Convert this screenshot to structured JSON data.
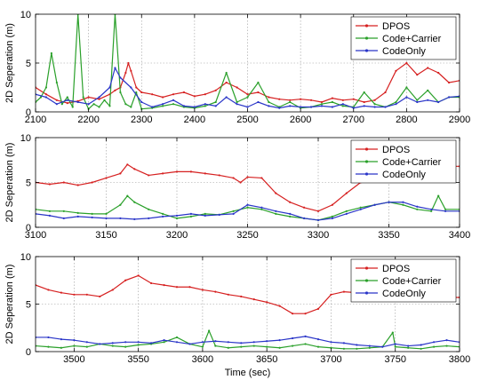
{
  "chart_data": [
    {
      "type": "line",
      "ylabel": "2D Seperation (m)",
      "xlabel": "",
      "xlim": [
        2100,
        2900
      ],
      "ylim": [
        0,
        10
      ],
      "xticks": [
        2100,
        2200,
        2300,
        2400,
        2500,
        2600,
        2700,
        2800,
        2900
      ],
      "yticks": [
        0,
        5,
        10
      ],
      "grid": true,
      "legend_position": "top-right",
      "series": [
        {
          "name": "DPOS",
          "color": "#d62020",
          "x": [
            2100,
            2120,
            2140,
            2160,
            2180,
            2200,
            2220,
            2240,
            2250,
            2260,
            2270,
            2275,
            2280,
            2290,
            2300,
            2320,
            2340,
            2360,
            2380,
            2400,
            2420,
            2440,
            2460,
            2480,
            2500,
            2520,
            2540,
            2560,
            2580,
            2600,
            2620,
            2640,
            2660,
            2680,
            2700,
            2720,
            2740,
            2760,
            2780,
            2800,
            2820,
            2840,
            2860,
            2880,
            2900
          ],
          "y": [
            2.5,
            1.8,
            1.2,
            0.9,
            1.1,
            1.5,
            1.3,
            1.8,
            2.2,
            2.5,
            4.0,
            5.0,
            4.2,
            2.5,
            2.0,
            1.8,
            1.5,
            1.8,
            2.0,
            1.6,
            1.8,
            2.2,
            3.0,
            2.5,
            1.8,
            2.0,
            1.5,
            1.3,
            1.2,
            1.3,
            1.2,
            1.0,
            1.4,
            1.2,
            1.3,
            1.0,
            1.2,
            2.0,
            4.2,
            5.0,
            3.8,
            4.5,
            4.0,
            3.0,
            3.2
          ]
        },
        {
          "name": "Code+Carrier",
          "color": "#2aa02a",
          "x": [
            2100,
            2110,
            2120,
            2130,
            2140,
            2150,
            2160,
            2170,
            2180,
            2190,
            2200,
            2210,
            2220,
            2230,
            2240,
            2250,
            2260,
            2270,
            2280,
            2290,
            2300,
            2320,
            2340,
            2360,
            2380,
            2400,
            2420,
            2440,
            2460,
            2480,
            2500,
            2520,
            2540,
            2560,
            2580,
            2600,
            2620,
            2640,
            2660,
            2680,
            2700,
            2720,
            2740,
            2760,
            2780,
            2800,
            2820,
            2840,
            2860,
            2880,
            2900
          ],
          "y": [
            1.0,
            1.5,
            2.5,
            6.0,
            3.0,
            0.8,
            1.5,
            0.5,
            10.0,
            1.5,
            0.3,
            0.8,
            0.5,
            1.2,
            0.6,
            10.0,
            2.0,
            0.8,
            0.5,
            2.0,
            0.3,
            0.4,
            0.6,
            0.8,
            0.5,
            0.4,
            0.6,
            1.0,
            4.0,
            1.0,
            1.5,
            3.0,
            1.0,
            0.5,
            1.0,
            0.4,
            0.5,
            0.8,
            1.0,
            0.6,
            0.5,
            2.0,
            0.8,
            0.5,
            1.0,
            2.5,
            1.2,
            2.2,
            1.0,
            1.5,
            1.5
          ]
        },
        {
          "name": "CodeOnly",
          "color": "#2a35c8",
          "x": [
            2100,
            2120,
            2140,
            2160,
            2180,
            2200,
            2220,
            2240,
            2250,
            2260,
            2280,
            2300,
            2320,
            2340,
            2360,
            2380,
            2400,
            2420,
            2440,
            2460,
            2480,
            2500,
            2520,
            2540,
            2560,
            2580,
            2600,
            2620,
            2640,
            2660,
            2680,
            2700,
            2720,
            2740,
            2760,
            2780,
            2800,
            2820,
            2840,
            2860,
            2880,
            2900
          ],
          "y": [
            1.8,
            1.5,
            0.8,
            1.2,
            1.0,
            0.8,
            1.5,
            2.5,
            4.5,
            3.5,
            2.5,
            1.0,
            0.5,
            0.8,
            1.2,
            0.6,
            0.5,
            0.8,
            0.6,
            1.5,
            0.8,
            0.5,
            1.0,
            0.6,
            0.4,
            0.6,
            0.5,
            0.5,
            0.6,
            0.5,
            0.8,
            0.4,
            0.6,
            0.5,
            0.5,
            0.8,
            1.5,
            1.0,
            1.2,
            1.0,
            1.5,
            1.6
          ]
        }
      ]
    },
    {
      "type": "line",
      "ylabel": "2D Seperation (m)",
      "xlabel": "",
      "xlim": [
        3100,
        3400
      ],
      "ylim": [
        0,
        10
      ],
      "xticks": [
        3100,
        3150,
        3200,
        3250,
        3300,
        3350,
        3400
      ],
      "yticks": [
        0,
        5,
        10
      ],
      "grid": true,
      "legend_position": "top-right",
      "series": [
        {
          "name": "DPOS",
          "color": "#d62020",
          "x": [
            3100,
            3110,
            3120,
            3130,
            3140,
            3150,
            3160,
            3165,
            3170,
            3180,
            3190,
            3200,
            3210,
            3220,
            3230,
            3240,
            3245,
            3250,
            3260,
            3270,
            3280,
            3290,
            3300,
            3310,
            3320,
            3330,
            3340,
            3350,
            3360,
            3370,
            3380,
            3390,
            3400
          ],
          "y": [
            5.0,
            4.8,
            5.0,
            4.7,
            5.0,
            5.5,
            6.0,
            7.0,
            6.5,
            5.8,
            6.0,
            6.2,
            6.2,
            6.0,
            5.8,
            5.5,
            5.0,
            5.6,
            5.5,
            3.8,
            2.8,
            2.2,
            1.8,
            2.5,
            3.8,
            5.0,
            5.5,
            5.8,
            6.5,
            6.5,
            6.5,
            6.8,
            6.8
          ]
        },
        {
          "name": "Code+Carrier",
          "color": "#2aa02a",
          "x": [
            3100,
            3110,
            3120,
            3130,
            3140,
            3150,
            3160,
            3165,
            3170,
            3180,
            3190,
            3200,
            3210,
            3220,
            3230,
            3240,
            3250,
            3260,
            3270,
            3280,
            3290,
            3300,
            3310,
            3320,
            3330,
            3340,
            3350,
            3360,
            3370,
            3380,
            3385,
            3390,
            3400
          ],
          "y": [
            2.0,
            1.8,
            1.8,
            1.6,
            1.5,
            1.5,
            2.5,
            3.5,
            2.8,
            2.0,
            1.5,
            1.0,
            1.2,
            1.5,
            1.4,
            1.8,
            2.2,
            2.0,
            1.5,
            1.2,
            1.0,
            0.8,
            1.2,
            1.8,
            2.2,
            2.5,
            2.8,
            2.5,
            2.0,
            1.8,
            3.5,
            2.0,
            2.0
          ]
        },
        {
          "name": "CodeOnly",
          "color": "#2a35c8",
          "x": [
            3100,
            3110,
            3120,
            3130,
            3140,
            3150,
            3160,
            3170,
            3180,
            3190,
            3200,
            3210,
            3220,
            3230,
            3240,
            3250,
            3260,
            3270,
            3280,
            3290,
            3300,
            3310,
            3320,
            3330,
            3340,
            3350,
            3360,
            3370,
            3380,
            3390,
            3400
          ],
          "y": [
            1.5,
            1.3,
            1.0,
            1.2,
            1.1,
            1.0,
            1.0,
            0.9,
            1.0,
            1.2,
            1.3,
            1.5,
            1.3,
            1.4,
            1.5,
            2.5,
            2.2,
            1.8,
            1.5,
            1.0,
            0.8,
            1.0,
            1.5,
            2.0,
            2.5,
            2.8,
            2.8,
            2.3,
            2.0,
            1.8,
            1.8
          ]
        }
      ]
    },
    {
      "type": "line",
      "ylabel": "2D Seperation (m)",
      "xlabel": "Time (sec)",
      "xlim": [
        3470,
        3800
      ],
      "ylim": [
        0,
        10
      ],
      "xticks": [
        3500,
        3550,
        3600,
        3650,
        3700,
        3750,
        3800
      ],
      "yticks": [
        0,
        5,
        10
      ],
      "grid": true,
      "legend_position": "top-right",
      "series": [
        {
          "name": "DPOS",
          "color": "#d62020",
          "x": [
            3470,
            3480,
            3490,
            3500,
            3510,
            3520,
            3530,
            3540,
            3550,
            3560,
            3570,
            3580,
            3590,
            3600,
            3610,
            3620,
            3630,
            3640,
            3650,
            3660,
            3670,
            3680,
            3690,
            3700,
            3710,
            3720,
            3730,
            3740,
            3750,
            3760,
            3770,
            3780,
            3790,
            3800
          ],
          "y": [
            7.0,
            6.5,
            6.2,
            6.0,
            6.0,
            5.8,
            6.5,
            7.5,
            8.0,
            7.2,
            7.0,
            6.8,
            6.8,
            6.5,
            6.3,
            6.0,
            5.8,
            5.5,
            5.2,
            4.8,
            4.0,
            4.0,
            4.5,
            6.0,
            6.3,
            6.2,
            6.0,
            5.8,
            5.6,
            5.6,
            5.5,
            5.6,
            5.7,
            5.7
          ]
        },
        {
          "name": "Code+Carrier",
          "color": "#2aa02a",
          "x": [
            3470,
            3480,
            3490,
            3500,
            3510,
            3520,
            3530,
            3540,
            3550,
            3560,
            3570,
            3580,
            3590,
            3600,
            3605,
            3610,
            3620,
            3630,
            3640,
            3650,
            3660,
            3670,
            3680,
            3690,
            3700,
            3710,
            3720,
            3730,
            3740,
            3748,
            3750,
            3760,
            3770,
            3780,
            3790,
            3800
          ],
          "y": [
            0.6,
            0.5,
            0.4,
            0.6,
            0.5,
            0.8,
            0.6,
            0.5,
            0.7,
            0.8,
            1.0,
            1.5,
            0.8,
            0.5,
            2.2,
            0.6,
            0.4,
            0.5,
            0.6,
            0.5,
            0.4,
            0.6,
            0.8,
            0.5,
            0.4,
            0.3,
            0.3,
            0.4,
            0.5,
            2.0,
            0.5,
            0.4,
            0.3,
            0.5,
            0.6,
            0.5
          ]
        },
        {
          "name": "CodeOnly",
          "color": "#2a35c8",
          "x": [
            3470,
            3480,
            3490,
            3500,
            3510,
            3520,
            3530,
            3540,
            3550,
            3560,
            3570,
            3580,
            3590,
            3600,
            3610,
            3620,
            3630,
            3640,
            3650,
            3660,
            3670,
            3680,
            3690,
            3700,
            3710,
            3720,
            3730,
            3740,
            3750,
            3760,
            3770,
            3780,
            3790,
            3800
          ],
          "y": [
            1.5,
            1.5,
            1.3,
            1.2,
            1.0,
            0.8,
            0.9,
            1.0,
            1.0,
            0.9,
            1.2,
            1.0,
            0.8,
            1.0,
            1.1,
            1.0,
            0.9,
            1.0,
            1.1,
            1.2,
            1.4,
            1.6,
            1.3,
            1.0,
            0.9,
            0.7,
            0.6,
            0.5,
            0.8,
            0.6,
            0.7,
            1.0,
            1.2,
            1.0
          ]
        }
      ]
    }
  ]
}
